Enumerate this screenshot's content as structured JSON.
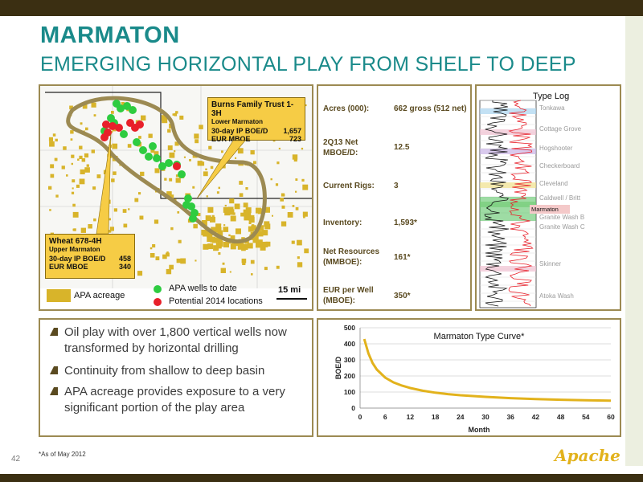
{
  "header": {
    "title": "MARMATON",
    "subtitle": "EMERGING HORIZONTAL PLAY FROM SHELF TO DEEP"
  },
  "map": {
    "callout_burns": {
      "title": "Burns Family Trust 1-3H",
      "zone": "Lower Marmaton",
      "ip_label": "30-day IP BOE/D",
      "ip_value": "1,657",
      "eur_label": "EUR MBOE",
      "eur_value": "723"
    },
    "callout_wheat": {
      "title": "Wheat 678-4H",
      "zone": "Upper Marmaton",
      "ip_label": "30-day IP BOE/D",
      "ip_value": "458",
      "eur_label": "EUR MBOE",
      "eur_value": "340"
    },
    "legend": {
      "acreage": "APA acreage",
      "wells_to_date": "APA wells to date",
      "potential": "Potential 2014 locations",
      "scale": "15 mi"
    },
    "colors": {
      "acreage": "#d8b42a",
      "wells": "#2ecc40",
      "potential": "#e8202a",
      "outline": "#9c8a52"
    }
  },
  "stats": [
    {
      "label": "Acres (000):",
      "value": "662 gross (512 net)"
    },
    {
      "label": "2Q13 Net MBOE/D:",
      "value": "12.5"
    },
    {
      "label": "Current Rigs:",
      "value": "3"
    },
    {
      "label": "Inventory:",
      "value": "1,593*"
    },
    {
      "label": "Net Resources (MMBOE):",
      "value": "161*"
    },
    {
      "label": "EUR per Well (MBOE):",
      "value": "350*"
    }
  ],
  "type_log": {
    "title": "Type Log",
    "formations": [
      "Tonkawa",
      "Cottage Grove",
      "Hogshooter",
      "Checkerboard",
      "Cleveland",
      "Caldwell / Britt",
      "Marmaton",
      "Granite Wash B",
      "Granite Wash C",
      "Skinner",
      "Atoka Wash"
    ]
  },
  "bullets": [
    "Oil play with over 1,800 vertical wells now transformed by horizontal drilling",
    "Continuity from shallow to deep basin",
    "APA acreage provides exposure to a very significant portion of the play area"
  ],
  "chart_data": {
    "type": "line",
    "title": "Marmaton Type Curve*",
    "xlabel": "Month",
    "ylabel": "BOE/D",
    "xlim": [
      0,
      60
    ],
    "ylim": [
      0,
      500
    ],
    "xticks": [
      "0",
      "6",
      "12",
      "18",
      "24",
      "30",
      "36",
      "42",
      "48",
      "54",
      "60"
    ],
    "yticks": [
      "0",
      "100",
      "200",
      "300",
      "400",
      "500"
    ],
    "grid": "horizontal",
    "color": "#e2b21c",
    "x": [
      1,
      2,
      3,
      4,
      6,
      8,
      10,
      12,
      15,
      18,
      21,
      24,
      30,
      36,
      42,
      48,
      54,
      60
    ],
    "y": [
      430,
      340,
      280,
      240,
      190,
      160,
      140,
      125,
      108,
      96,
      87,
      80,
      70,
      62,
      56,
      52,
      49,
      46
    ]
  },
  "footnote": "*As of May 2012",
  "page_number": "42",
  "logo_text": "Apache"
}
